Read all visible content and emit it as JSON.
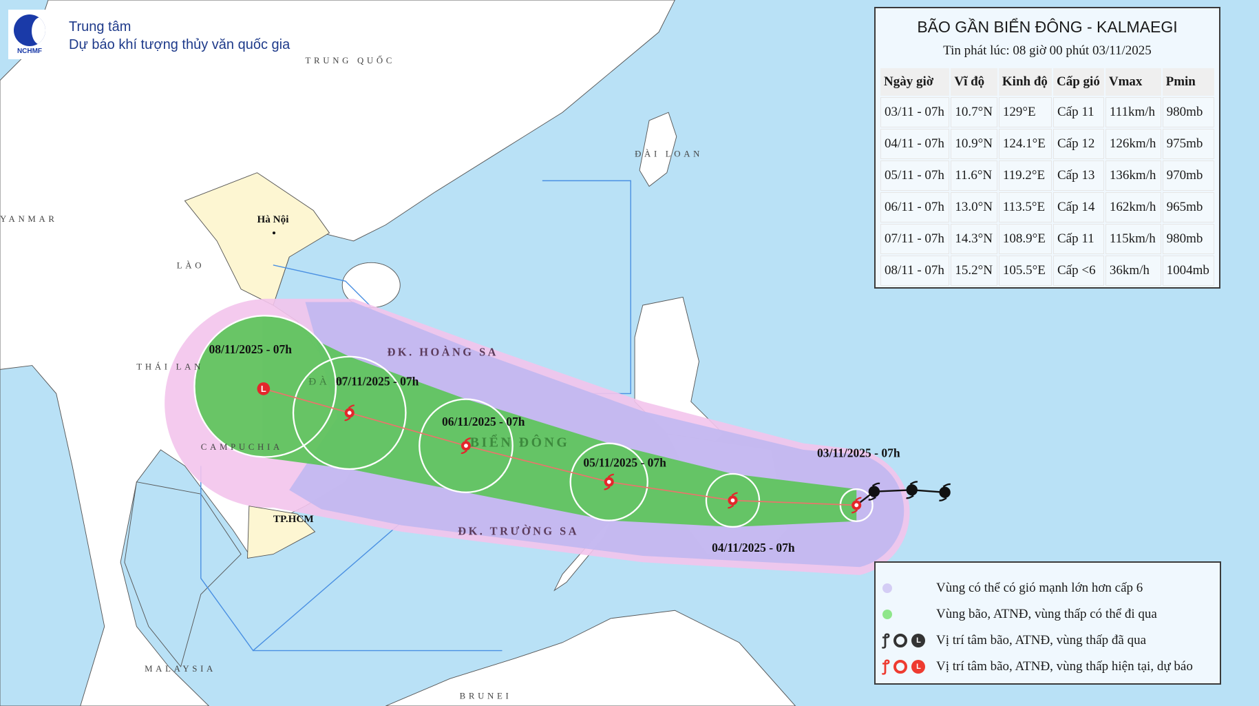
{
  "header": {
    "logo_text": "NCHMF",
    "org_line1": "Trung tâm",
    "org_line2": "Dự báo khí tượng thủy văn quốc gia"
  },
  "map_labels": {
    "china": "TRUNG QUỐC",
    "taiwan": "ĐÀI LOAN",
    "myanmar": "YANMAR",
    "laos": "LÀO",
    "thailand": "THÁI LAN",
    "cambodia": "CAMPUCHIA",
    "malaysia": "MALAYSIA",
    "brunei": "BRUNEI",
    "hanoi": "Hà Nội",
    "hcm": "TP.HCM",
    "danang": "ĐÀ N",
    "bien_dong": "BIỂN ĐÔNG",
    "hoang_sa": "ĐK. HOÀNG SA",
    "truong_sa": "ĐK. TRƯỜNG SA"
  },
  "track": {
    "past": [
      {
        "icon": "storm-past-icon"
      },
      {
        "icon": "storm-past-icon"
      },
      {
        "icon": "storm-past-icon"
      }
    ],
    "points": [
      {
        "label": "03/11/2025 - 07h",
        "lat": 10.7,
        "lon": 129.0,
        "icon": "storm-icon"
      },
      {
        "label": "04/11/2025 - 07h",
        "lat": 10.9,
        "lon": 124.1,
        "icon": "storm-icon"
      },
      {
        "label": "05/11/2025 - 07h",
        "lat": 11.6,
        "lon": 119.2,
        "icon": "storm-icon"
      },
      {
        "label": "06/11/2025 - 07h",
        "lat": 13.0,
        "lon": 113.5,
        "icon": "storm-icon"
      },
      {
        "label": "07/11/2025 - 07h",
        "lat": 14.3,
        "lon": 108.9,
        "icon": "storm-icon"
      },
      {
        "label": "08/11/2025 - 07h",
        "lat": 15.2,
        "lon": 105.5,
        "icon": "low-pressure-icon"
      }
    ]
  },
  "info": {
    "title": "BÃO GẦN BIỂN ĐÔNG - KALMAEGI",
    "issued": "Tin phát lúc: 08 giờ 00 phút 03/11/2025",
    "columns": [
      "Ngày giờ",
      "Vĩ độ",
      "Kinh độ",
      "Cấp gió",
      "Vmax",
      "Pmin"
    ],
    "rows": [
      [
        "03/11 - 07h",
        "10.7°N",
        "129°E",
        "Cấp 11",
        "111km/h",
        "980mb"
      ],
      [
        "04/11 - 07h",
        "10.9°N",
        "124.1°E",
        "Cấp 12",
        "126km/h",
        "975mb"
      ],
      [
        "05/11 - 07h",
        "11.6°N",
        "119.2°E",
        "Cấp 13",
        "136km/h",
        "970mb"
      ],
      [
        "06/11 - 07h",
        "13.0°N",
        "113.5°E",
        "Cấp 14",
        "162km/h",
        "965mb"
      ],
      [
        "07/11 - 07h",
        "14.3°N",
        "108.9°E",
        "Cấp 11",
        "115km/h",
        "980mb"
      ],
      [
        "08/11 - 07h",
        "15.2°N",
        "105.5°E",
        "Cấp <6",
        "36km/h",
        "1004mb"
      ]
    ]
  },
  "legend": {
    "items": [
      {
        "label": "Vùng có thể có gió mạnh lớn hơn cấp 6",
        "color": "#d4cdf5"
      },
      {
        "label": "Vùng bão, ATNĐ, vùng thấp có thể đi qua",
        "color": "#8ee68a"
      },
      {
        "label": "Vị trí tâm bão, ATNĐ, vùng thấp đã qua",
        "color": "#333333",
        "low_letter": "L"
      },
      {
        "label": "Vị trí tâm bão, ATNĐ, vùng thấp hiện tại, dự báo",
        "color": "#ee3b30",
        "low_letter": "L"
      }
    ]
  },
  "colors": {
    "sea": "#b9e1f6",
    "land": "#ffffff",
    "vietnam": "#fdf6d2",
    "wind_zone": "#c3b8f0",
    "storm_zone": "#5cc45a",
    "forecast": "#e4262b"
  }
}
